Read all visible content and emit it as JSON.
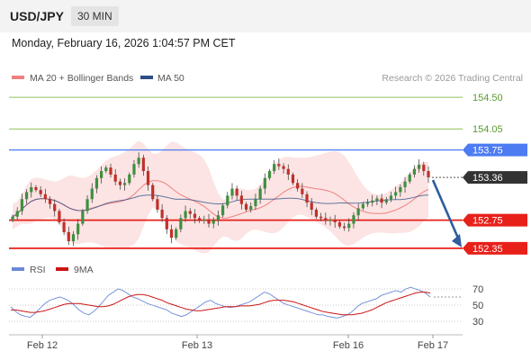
{
  "header": {
    "symbol": "USD/JPY",
    "timeframe": "30 MIN",
    "datetime": "Monday, February 16, 2026 1:04:57 PM CET"
  },
  "credit": "Research © 2026 Trading Central",
  "colors": {
    "ma20_bollinger": "#f08080",
    "ma50": "#2e4f86",
    "resistance": "#4c7bf2",
    "support": "#e8201a",
    "target_green": "#8ec35a",
    "candle_up": "#3e8f3e",
    "candle_down": "#c0302a",
    "arrow": "#2f5d9e",
    "last_price_tag": "#333333",
    "rsi": "#6a88d8",
    "rsi_ma": "#cc1515"
  },
  "chart_data": [
    {
      "type": "candlestick",
      "legend": [
        "MA 20 + Bollinger Bands",
        "MA 50"
      ],
      "x_ticks": [
        "Feb 12",
        "Feb 13",
        "Feb 16",
        "Feb 17"
      ],
      "ylim": [
        152.22,
        154.63
      ],
      "levels": [
        {
          "label": "154.50",
          "value": 154.5,
          "kind": "target"
        },
        {
          "label": "154.05",
          "value": 154.05,
          "kind": "target"
        },
        {
          "label": "153.75",
          "value": 153.75,
          "kind": "resistance"
        },
        {
          "label": "153.36",
          "value": 153.36,
          "kind": "last"
        },
        {
          "label": "152.75",
          "value": 152.75,
          "kind": "support"
        },
        {
          "label": "152.35",
          "value": 152.35,
          "kind": "support"
        }
      ],
      "close_path": [
        152.8,
        152.88,
        153.05,
        153.15,
        153.22,
        153.18,
        153.12,
        153.05,
        152.98,
        152.88,
        152.72,
        152.58,
        152.45,
        152.55,
        152.7,
        152.88,
        153.05,
        153.2,
        153.35,
        153.45,
        153.5,
        153.4,
        153.3,
        153.25,
        153.28,
        153.4,
        153.55,
        153.64,
        153.45,
        153.25,
        153.05,
        152.9,
        152.78,
        152.62,
        152.5,
        152.62,
        152.78,
        152.88,
        152.84,
        152.78,
        152.74,
        152.76,
        152.7,
        152.75,
        152.82,
        152.96,
        153.1,
        153.2,
        153.1,
        152.98,
        152.9,
        152.95,
        153.05,
        153.2,
        153.35,
        153.45,
        153.55,
        153.52,
        153.48,
        153.4,
        153.28,
        153.2,
        153.12,
        153.0,
        152.9,
        152.8,
        152.78,
        152.74,
        152.76,
        152.72,
        152.66,
        152.64,
        152.7,
        152.82,
        152.92,
        152.98,
        153.0,
        153.03,
        153.06,
        153.0,
        153.05,
        153.1,
        153.15,
        153.22,
        153.3,
        153.4,
        153.48,
        153.54,
        153.45,
        153.36
      ],
      "arrow": {
        "from": 153.36,
        "to": 152.35
      }
    },
    {
      "type": "line",
      "legend": [
        "RSI",
        "9MA"
      ],
      "y_ticks": [
        70,
        50,
        30
      ],
      "ylim": [
        20,
        80
      ],
      "rsi": [
        48,
        42,
        38,
        36,
        35,
        40,
        46,
        52,
        56,
        58,
        60,
        58,
        55,
        50,
        44,
        40,
        38,
        42,
        48,
        55,
        62,
        66,
        70,
        68,
        64,
        60,
        58,
        55,
        52,
        50,
        48,
        46,
        44,
        40,
        38,
        36,
        38,
        42,
        46,
        50,
        54,
        56,
        52,
        50,
        48,
        47,
        48,
        50,
        52,
        54,
        58,
        62,
        66,
        64,
        60,
        56,
        52,
        50,
        48,
        46,
        44,
        42,
        40,
        38,
        38,
        36,
        35,
        34,
        36,
        38,
        42,
        48,
        52,
        54,
        56,
        58,
        62,
        64,
        66,
        68,
        66,
        70,
        72,
        70,
        68,
        65,
        60
      ],
      "rsi_ma": [
        44,
        44,
        43,
        42,
        41,
        41,
        42,
        43,
        45,
        47,
        49,
        51,
        52,
        52,
        52,
        51,
        50,
        49,
        48,
        48,
        49,
        51,
        54,
        57,
        60,
        62,
        63,
        63,
        62,
        60,
        58,
        56,
        53,
        51,
        49,
        47,
        45,
        44,
        43,
        43,
        44,
        45,
        46,
        47,
        48,
        48,
        48,
        49,
        49,
        49,
        50,
        51,
        53,
        55,
        56,
        56,
        56,
        55,
        54,
        52,
        50,
        48,
        46,
        44,
        42,
        41,
        40,
        39,
        38,
        38,
        38,
        39,
        40,
        42,
        44,
        47,
        50,
        53,
        55,
        57,
        59,
        61,
        63,
        65,
        66,
        66,
        65
      ]
    }
  ]
}
